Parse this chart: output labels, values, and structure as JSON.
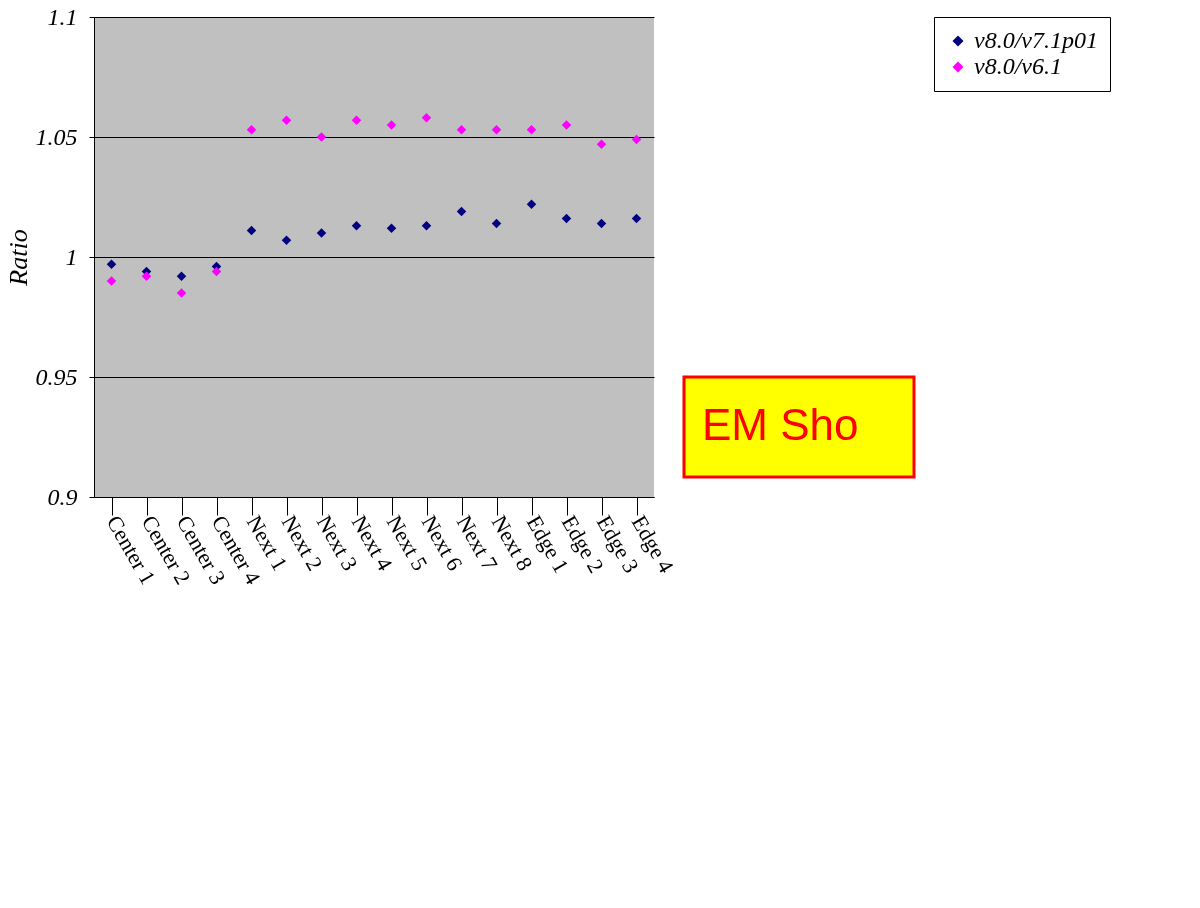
{
  "chart_data": {
    "type": "scatter",
    "ylabel": "Ratio",
    "categories": [
      "Center 1",
      "Center 2",
      "Center 3",
      "Center 4",
      "Next 1",
      "Next 2",
      "Next 3",
      "Next 4",
      "Next 5",
      "Next 6",
      "Next 7",
      "Next 8",
      "Edge 1",
      "Edge 2",
      "Edge 3",
      "Edge 4"
    ],
    "series": [
      {
        "name": "v8.0/v7.1p01",
        "color": "#000080",
        "values": [
          0.997,
          0.994,
          0.992,
          0.996,
          1.011,
          1.007,
          1.01,
          1.013,
          1.012,
          1.013,
          1.019,
          1.014,
          1.022,
          1.016,
          1.014,
          1.016
        ]
      },
      {
        "name": "v8.0/v6.1",
        "color": "#ff00ff",
        "values": [
          0.99,
          0.992,
          0.985,
          0.994,
          1.053,
          1.057,
          1.05,
          1.057,
          1.055,
          1.058,
          1.053,
          1.053,
          1.053,
          1.055,
          1.047,
          1.049
        ]
      }
    ],
    "ylim": [
      0.9,
      1.1
    ],
    "yticks": [
      0.9,
      0.95,
      1,
      1.05,
      1.1
    ],
    "grid": "y",
    "legend": "right",
    "marker": "diamond",
    "annotations": [
      "EM Sho"
    ]
  }
}
